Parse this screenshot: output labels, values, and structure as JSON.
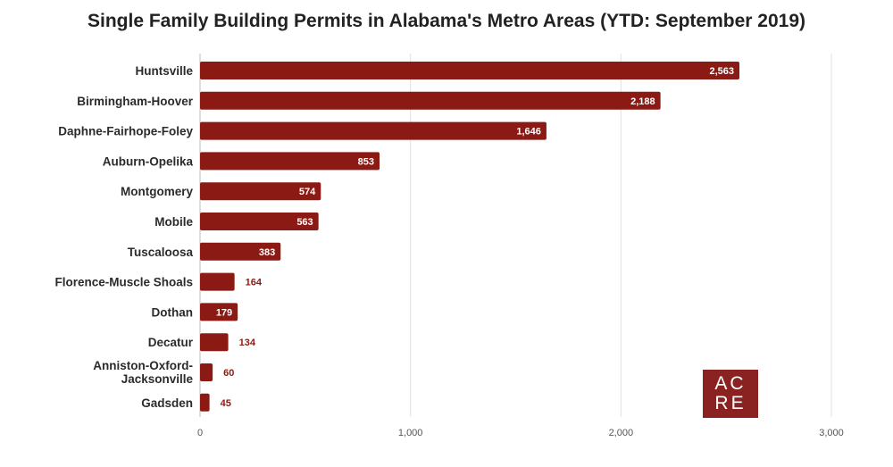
{
  "chart_data": {
    "type": "bar",
    "orientation": "horizontal",
    "title": "Single Family Building Permits in Alabama's Metro Areas (YTD: September 2019)",
    "categories": [
      "Huntsville",
      "Birmingham-Hoover",
      "Daphne-Fairhope-Foley",
      "Auburn-Opelika",
      "Montgomery",
      "Mobile",
      "Tuscaloosa",
      "Florence-Muscle Shoals",
      "Dothan",
      "Decatur",
      "Anniston-Oxford-\nJacksonville",
      "Gadsden"
    ],
    "values": [
      2563,
      2188,
      1646,
      853,
      574,
      563,
      383,
      164,
      179,
      134,
      60,
      45
    ],
    "value_labels": [
      "2,563",
      "2,188",
      "1,646",
      "853",
      "574",
      "563",
      "383",
      "164",
      "179",
      "134",
      "60",
      "45"
    ],
    "xlim": [
      0,
      3000
    ],
    "x_ticks": [
      0,
      1000,
      2000,
      3000
    ],
    "x_tick_labels": [
      "0",
      "1,000",
      "2,000",
      "3,000"
    ],
    "grid": true,
    "bar_color": "#8b1a14"
  },
  "logo": {
    "line1": "AC",
    "line2": "RE",
    "color": "#8b2222"
  }
}
